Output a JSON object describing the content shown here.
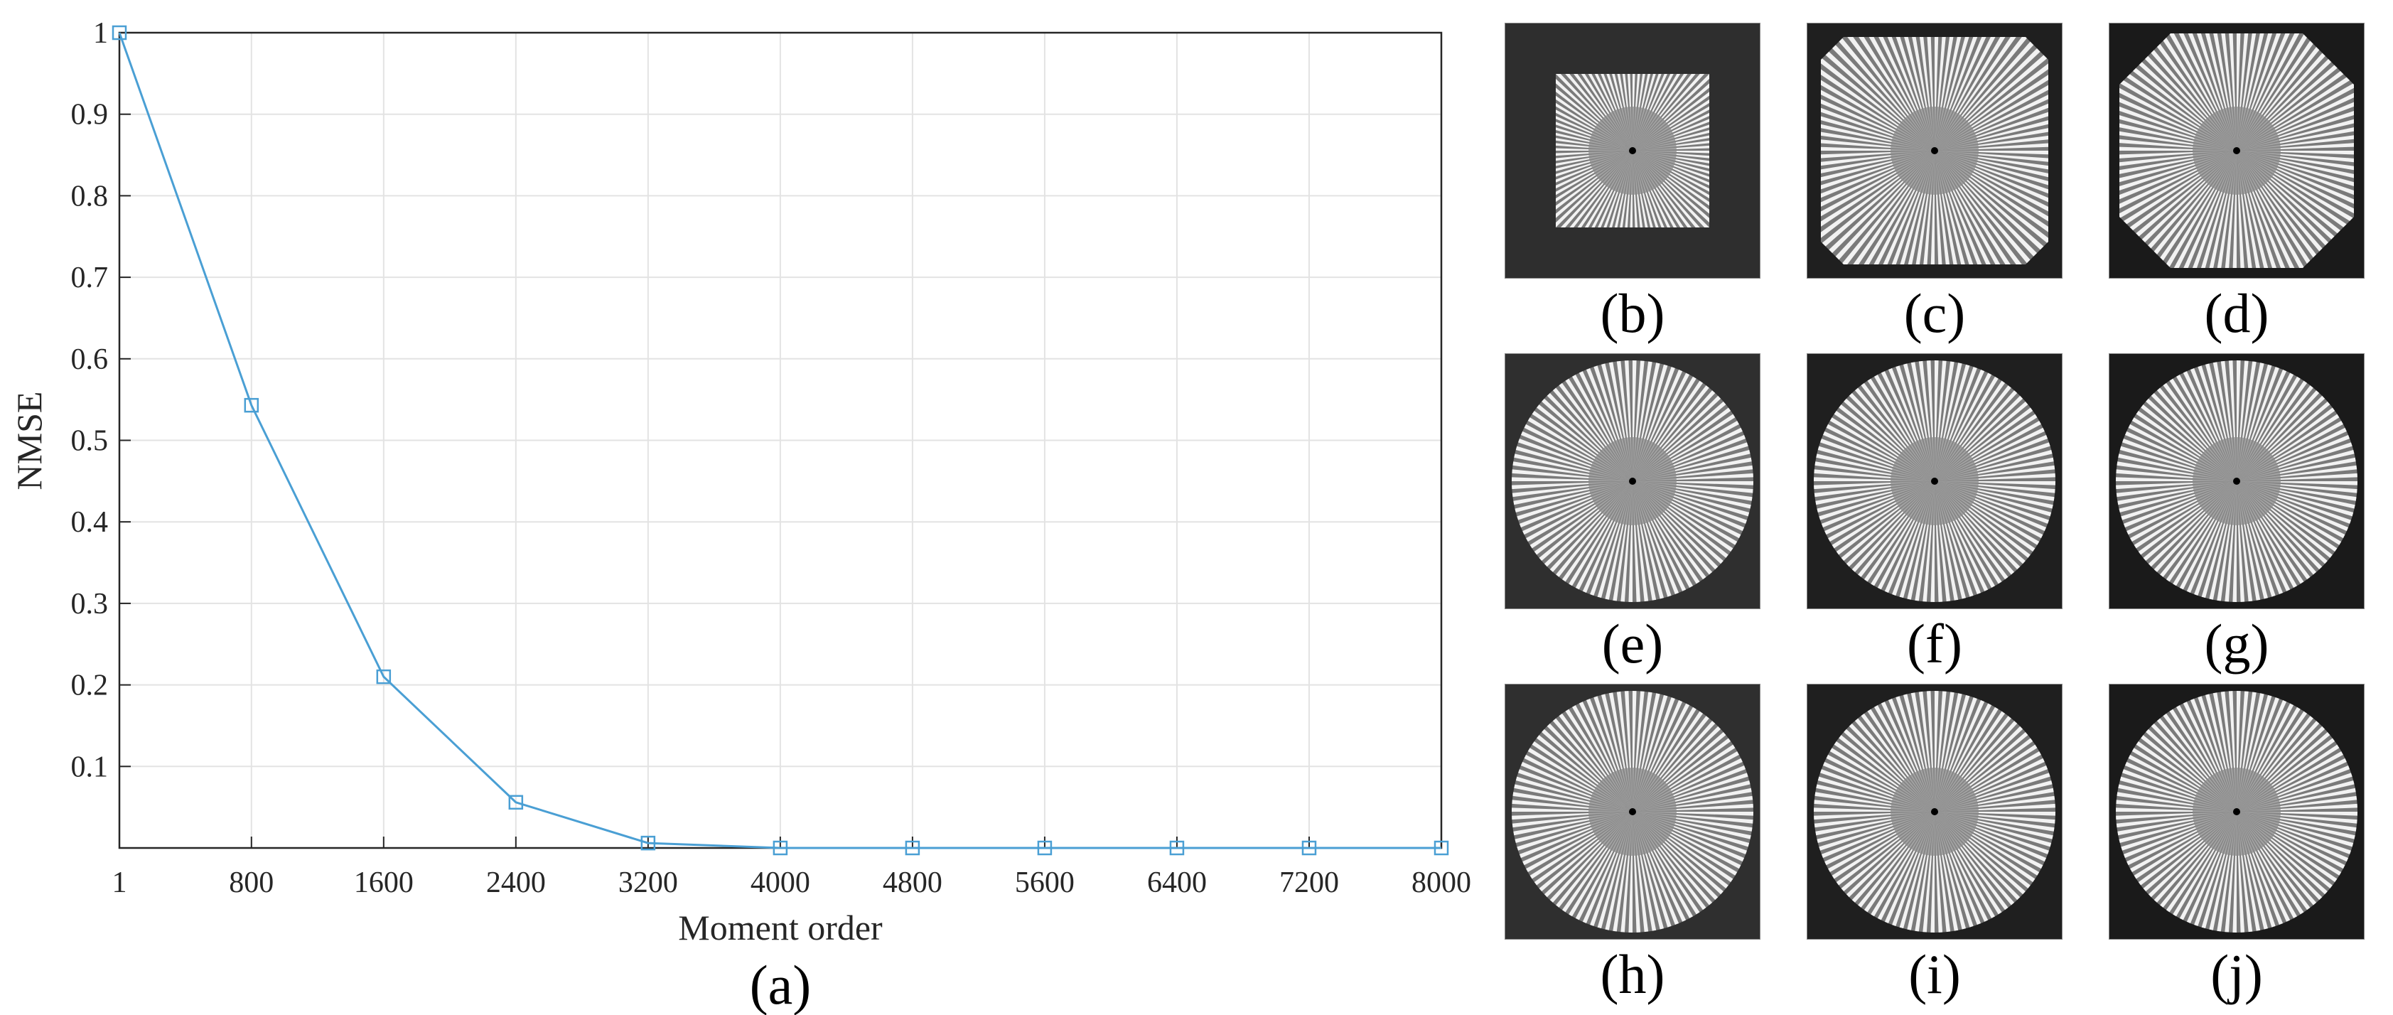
{
  "chart_data": {
    "type": "line",
    "xlabel": "Moment order",
    "ylabel": "NMSE",
    "x_tick_labels": [
      "1",
      "800",
      "1600",
      "2400",
      "3200",
      "4000",
      "4800",
      "5600",
      "6400",
      "7200",
      "8000"
    ],
    "y_tick_labels": [
      "0.1",
      "0.2",
      "0.3",
      "0.4",
      "0.5",
      "0.6",
      "0.7",
      "0.8",
      "0.9",
      "1"
    ],
    "xlim": [
      1,
      8000
    ],
    "ylim": [
      0,
      1
    ],
    "grid": true,
    "series": [
      {
        "color": "#4a9fd4",
        "marker": "square",
        "x": [
          1,
          800,
          1600,
          2400,
          3200,
          4000,
          4800,
          5600,
          6400,
          7200,
          8000
        ],
        "y": [
          1.0,
          0.543,
          0.21,
          0.056,
          0.006,
          0.0,
          0.0,
          0.0,
          0.0,
          0.0,
          0.0
        ]
      }
    ],
    "panel_label": "(a)"
  },
  "panels": [
    {
      "label": "(b)",
      "shape": "square-small"
    },
    {
      "label": "(c)",
      "shape": "clipped-square"
    },
    {
      "label": "(d)",
      "shape": "octagon"
    },
    {
      "label": "(e)",
      "shape": "circle"
    },
    {
      "label": "(f)",
      "shape": "circle"
    },
    {
      "label": "(g)",
      "shape": "circle"
    },
    {
      "label": "(h)",
      "shape": "circle"
    },
    {
      "label": "(i)",
      "shape": "circle"
    },
    {
      "label": "(j)",
      "shape": "circle"
    }
  ]
}
